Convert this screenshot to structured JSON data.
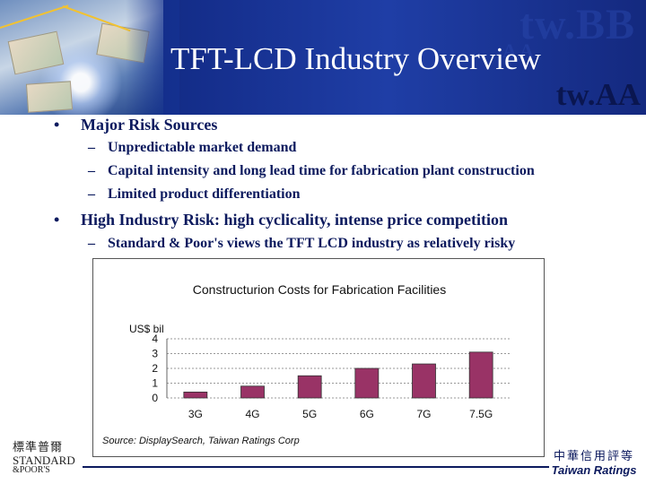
{
  "header": {
    "watermark_large": "tw.BB",
    "watermark_small": "A A",
    "title": "TFT-LCD Industry Overview",
    "rating_tag": "tw.AA"
  },
  "bullets": [
    {
      "marker": "•",
      "text": "Major Risk Sources",
      "subitems": [
        {
          "marker": "–",
          "text": "Unpredictable market demand"
        },
        {
          "marker": "–",
          "text": "Capital intensity and long lead time for fabrication plant construction"
        },
        {
          "marker": "–",
          "text": "Limited product differentiation"
        }
      ]
    },
    {
      "marker": "•",
      "text": "High Industry Risk: high cyclicality, intense price competition",
      "subitems": [
        {
          "marker": "–",
          "text": "Standard & Poor's views the TFT LCD industry as relatively risky"
        }
      ]
    }
  ],
  "chart_data": {
    "type": "bar",
    "title": "Constructurion Costs for Fabrication Facilities",
    "ylabel": "US$ bil",
    "xlabel": "",
    "categories": [
      "3G",
      "4G",
      "5G",
      "6G",
      "7G",
      "7.5G"
    ],
    "values": [
      0.4,
      0.8,
      1.5,
      2.0,
      2.3,
      3.1
    ],
    "ylim": [
      0,
      4
    ],
    "yticks": [
      "0",
      "1",
      "2",
      "3",
      "4"
    ],
    "grid": true,
    "bar_color": "#993366",
    "source": "Source: DisplaySearch, Taiwan Ratings Corp"
  },
  "footer": {
    "sp_logo_cn": "標準普爾",
    "sp_logo_en1": "STANDARD",
    "sp_logo_en2": "&POOR'S",
    "tr_logo_cn": "中華信用評等",
    "tr_logo_en": "Taiwan Ratings"
  },
  "colors": {
    "header_blue": "#16308f",
    "text_navy": "#0c1a5e"
  }
}
